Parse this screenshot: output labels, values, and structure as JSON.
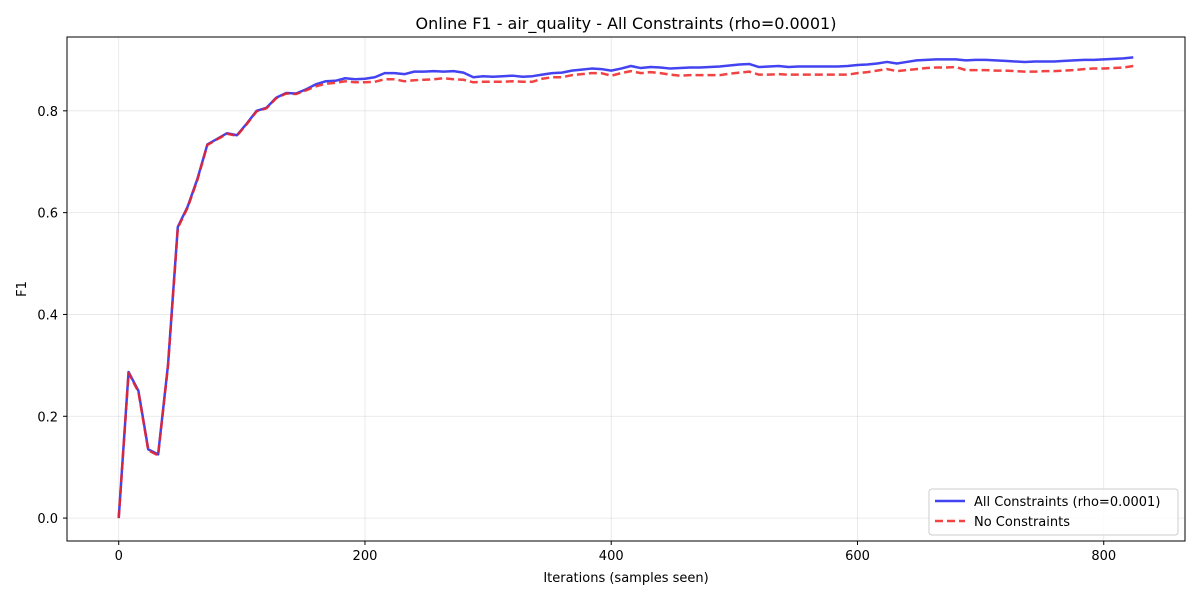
{
  "chart_data": {
    "type": "line",
    "title": "Online F1 - air_quality - All Constraints (rho=0.0001)",
    "xlabel": "Iterations (samples seen)",
    "ylabel": "F1",
    "xlim": [
      -42,
      866
    ],
    "ylim": [
      -0.045,
      0.945
    ],
    "xticks": [
      0,
      200,
      400,
      600,
      800
    ],
    "xtick_labels": [
      "0",
      "200",
      "400",
      "600",
      "800"
    ],
    "yticks": [
      0.0,
      0.2,
      0.4,
      0.6,
      0.8
    ],
    "ytick_labels": [
      "0.0",
      "0.2",
      "0.4",
      "0.6",
      "0.8"
    ],
    "grid": true,
    "legend_position": "bottom-right",
    "x": [
      0,
      8,
      16,
      24,
      32,
      40,
      48,
      56,
      64,
      72,
      80,
      88,
      96,
      104,
      112,
      120,
      128,
      136,
      144,
      152,
      160,
      168,
      176,
      184,
      192,
      200,
      208,
      216,
      224,
      232,
      240,
      248,
      256,
      264,
      272,
      280,
      288,
      296,
      304,
      312,
      320,
      328,
      336,
      344,
      352,
      360,
      368,
      376,
      384,
      392,
      400,
      408,
      416,
      424,
      432,
      440,
      448,
      456,
      464,
      472,
      480,
      488,
      496,
      504,
      512,
      520,
      528,
      536,
      544,
      552,
      560,
      568,
      576,
      584,
      592,
      600,
      608,
      616,
      624,
      632,
      640,
      648,
      656,
      664,
      672,
      680,
      688,
      696,
      704,
      712,
      720,
      728,
      736,
      744,
      752,
      760,
      768,
      776,
      784,
      792,
      800,
      808,
      816,
      824
    ],
    "series": [
      {
        "name": "All Constraints (rho=0.0001)",
        "color": "#2222ee",
        "style": "solid",
        "values": [
          0.0,
          0.287,
          0.25,
          0.135,
          0.125,
          0.3,
          0.572,
          0.612,
          0.667,
          0.734,
          0.745,
          0.756,
          0.752,
          0.775,
          0.8,
          0.806,
          0.826,
          0.835,
          0.834,
          0.842,
          0.852,
          0.858,
          0.859,
          0.864,
          0.862,
          0.863,
          0.866,
          0.874,
          0.874,
          0.872,
          0.877,
          0.877,
          0.878,
          0.877,
          0.878,
          0.875,
          0.866,
          0.868,
          0.867,
          0.868,
          0.869,
          0.867,
          0.868,
          0.871,
          0.874,
          0.875,
          0.879,
          0.881,
          0.883,
          0.882,
          0.879,
          0.883,
          0.888,
          0.884,
          0.886,
          0.885,
          0.883,
          0.884,
          0.885,
          0.885,
          0.886,
          0.887,
          0.889,
          0.891,
          0.892,
          0.886,
          0.887,
          0.888,
          0.886,
          0.887,
          0.887,
          0.887,
          0.887,
          0.887,
          0.888,
          0.89,
          0.891,
          0.893,
          0.896,
          0.893,
          0.896,
          0.899,
          0.9,
          0.901,
          0.901,
          0.901,
          0.899,
          0.9,
          0.9,
          0.899,
          0.898,
          0.897,
          0.896,
          0.897,
          0.897,
          0.897,
          0.898,
          0.899,
          0.9,
          0.9,
          0.901,
          0.902,
          0.903,
          0.905
        ]
      },
      {
        "name": "No Constraints",
        "color": "#ee2222",
        "style": "dashed",
        "values": [
          0.0,
          0.285,
          0.248,
          0.133,
          0.123,
          0.298,
          0.57,
          0.61,
          0.665,
          0.733,
          0.744,
          0.755,
          0.751,
          0.774,
          0.799,
          0.805,
          0.825,
          0.834,
          0.833,
          0.84,
          0.848,
          0.853,
          0.855,
          0.858,
          0.856,
          0.856,
          0.857,
          0.862,
          0.862,
          0.858,
          0.86,
          0.861,
          0.862,
          0.864,
          0.862,
          0.861,
          0.856,
          0.857,
          0.857,
          0.857,
          0.858,
          0.857,
          0.857,
          0.863,
          0.866,
          0.866,
          0.87,
          0.872,
          0.874,
          0.874,
          0.869,
          0.874,
          0.878,
          0.874,
          0.876,
          0.874,
          0.871,
          0.869,
          0.87,
          0.87,
          0.87,
          0.87,
          0.873,
          0.875,
          0.877,
          0.871,
          0.871,
          0.872,
          0.871,
          0.871,
          0.871,
          0.871,
          0.871,
          0.871,
          0.871,
          0.874,
          0.876,
          0.879,
          0.882,
          0.878,
          0.88,
          0.882,
          0.884,
          0.885,
          0.885,
          0.886,
          0.88,
          0.88,
          0.88,
          0.879,
          0.879,
          0.878,
          0.877,
          0.877,
          0.878,
          0.878,
          0.879,
          0.88,
          0.882,
          0.883,
          0.883,
          0.884,
          0.885,
          0.888
        ]
      }
    ]
  }
}
